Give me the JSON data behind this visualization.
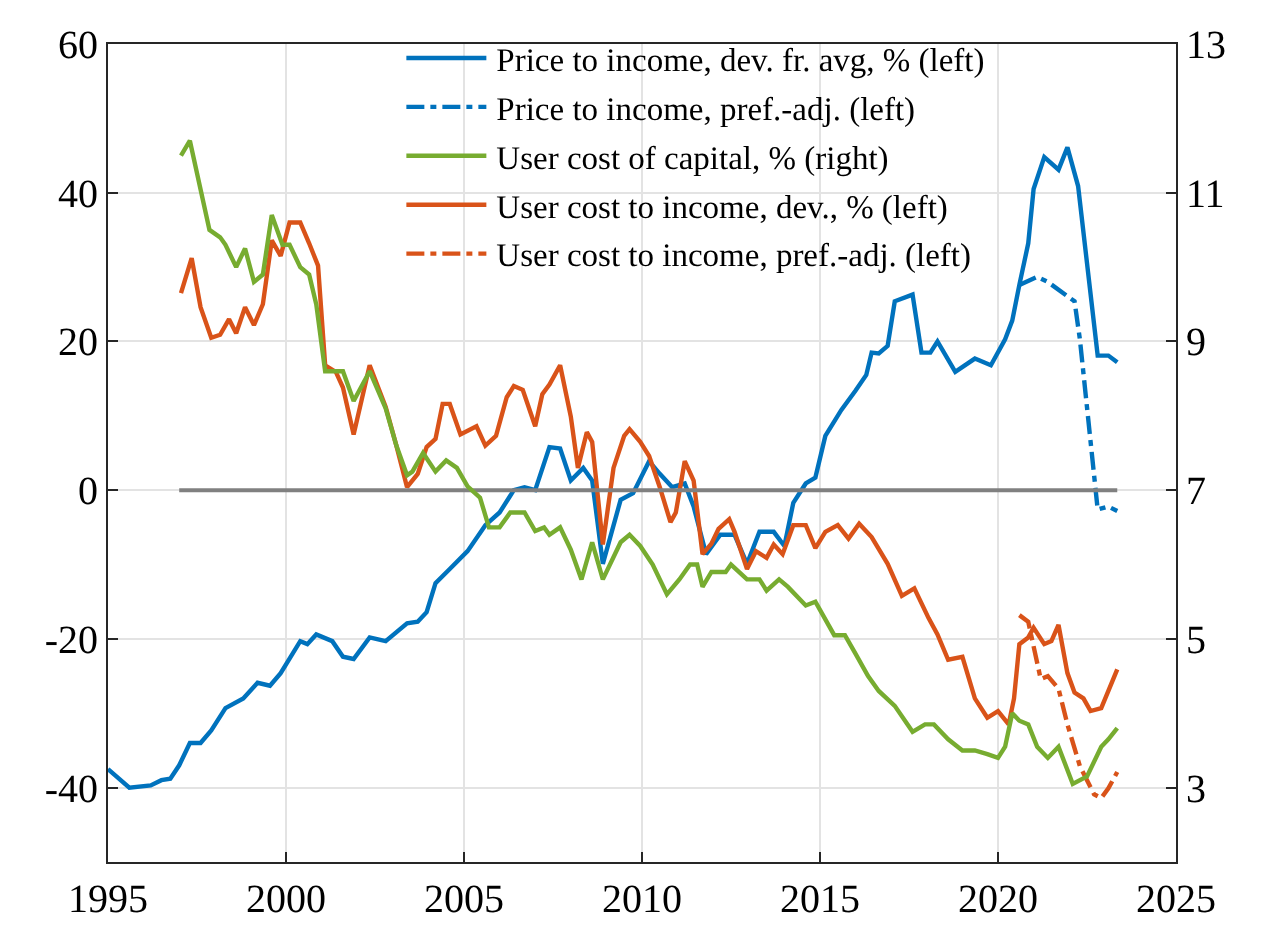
{
  "chart_data": {
    "type": "line",
    "xlim": [
      1995,
      2025
    ],
    "xticks": [
      1995,
      2000,
      2005,
      2010,
      2015,
      2020,
      2025
    ],
    "ylim": [
      -50,
      60
    ],
    "yticks": [
      -40,
      -20,
      0,
      20,
      40,
      60
    ],
    "y2lim": [
      2,
      13
    ],
    "y2ticks": [
      3,
      5,
      7,
      9,
      11,
      13
    ],
    "grid": true,
    "legend": "top right",
    "marker": "none",
    "series": [
      {
        "name": "Price to income, dev. fr. avg, % (left)",
        "color": "#0072bd",
        "line_style": "solid",
        "x": [
          1995.0,
          1995.6,
          1996.2,
          1996.5,
          1996.75,
          1997.0,
          1997.3,
          1997.6,
          1997.9,
          1998.3,
          1998.8,
          1999.2,
          1999.55,
          1999.85,
          2000.4,
          2000.6,
          2000.85,
          2001.3,
          2001.6,
          2001.9,
          2002.35,
          2002.8,
          2003.4,
          2003.7,
          2003.95,
          2004.2,
          2004.6,
          2005.1,
          2005.6,
          2006.0,
          2006.4,
          2006.7,
          2007.0,
          2007.4,
          2007.7,
          2008.0,
          2008.35,
          2008.6,
          2008.9,
          2009.4,
          2009.75,
          2010.2,
          2010.5,
          2010.85,
          2011.2,
          2011.45,
          2011.8,
          2012.2,
          2012.6,
          2012.95,
          2013.3,
          2013.7,
          2014.0,
          2014.25,
          2014.6,
          2014.87,
          2015.15,
          2015.6,
          2016.0,
          2016.3,
          2016.45,
          2016.65,
          2016.9,
          2017.1,
          2017.6,
          2017.85,
          2018.1,
          2018.3,
          2018.8,
          2019.35,
          2019.8,
          2020.2,
          2020.4,
          2020.6,
          2020.85,
          2021.0,
          2021.3,
          2021.7,
          2021.95,
          2022.25,
          2022.8,
          2023.1,
          2023.35
        ],
        "values": [
          -37.5,
          -40,
          -39.7,
          -39,
          -38.8,
          -37,
          -34,
          -34,
          -32.3,
          -29.3,
          -28,
          -25.9,
          -26.3,
          -24.6,
          -20.3,
          -20.7,
          -19.4,
          -20.3,
          -22.4,
          -22.7,
          -19.8,
          -20.3,
          -17.9,
          -17.7,
          -16.4,
          -12.5,
          -10.6,
          -8.2,
          -4.7,
          -3,
          0,
          0.4,
          0,
          5.8,
          5.6,
          1.3,
          3,
          1.3,
          -9.9,
          -1.3,
          -0.4,
          3.9,
          2.2,
          0.4,
          0.9,
          -2.2,
          -8.6,
          -6,
          -6,
          -9.9,
          -5.6,
          -5.6,
          -7.5,
          -1.7,
          0.9,
          1.7,
          7.3,
          10.8,
          13.4,
          15.5,
          18.5,
          18.4,
          19.4,
          25.4,
          26.3,
          18.5,
          18.5,
          20,
          15.9,
          17.7,
          16.8,
          20.3,
          22.8,
          27.6,
          33.2,
          40.5,
          44.8,
          43.1,
          46.1,
          40.9,
          18.1,
          18.1,
          17.2
        ]
      },
      {
        "name": "Price to income, pref.-adj. (left)",
        "color": "#0072bd",
        "line_style": "dashed",
        "x": [
          2020.6,
          2021.1,
          2021.4,
          2022.15,
          2022.3,
          2022.8,
          2023.1,
          2023.35
        ],
        "values": [
          27.6,
          28.7,
          28,
          25.4,
          20.3,
          -2.6,
          -2.2,
          -2.8
        ]
      },
      {
        "name": "User cost of capital, % (right)",
        "color": "#77ac30",
        "line_style": "solid",
        "axis": "y2",
        "x": [
          1997.05,
          1997.3,
          1997.85,
          1998.15,
          1998.3,
          1998.6,
          1998.85,
          1999.1,
          1999.35,
          1999.6,
          1999.9,
          2000.1,
          2000.4,
          2000.65,
          2000.85,
          2001.1,
          2001.4,
          2001.6,
          2001.9,
          2002.35,
          2002.8,
          2003.1,
          2003.4,
          2003.55,
          2003.85,
          2004.2,
          2004.5,
          2004.8,
          2005.1,
          2005.45,
          2005.7,
          2006.0,
          2006.3,
          2006.7,
          2007.0,
          2007.25,
          2007.4,
          2007.7,
          2008.0,
          2008.3,
          2008.6,
          2008.9,
          2009.4,
          2009.65,
          2009.95,
          2010.3,
          2010.7,
          2011.05,
          2011.35,
          2011.55,
          2011.7,
          2011.95,
          2012.35,
          2012.5,
          2012.95,
          2013.3,
          2013.5,
          2013.85,
          2014.1,
          2014.6,
          2014.87,
          2015.4,
          2015.7,
          2016.0,
          2016.35,
          2016.65,
          2017.1,
          2017.6,
          2017.95,
          2018.2,
          2018.6,
          2019.0,
          2019.35,
          2019.7,
          2020.0,
          2020.2,
          2020.4,
          2020.6,
          2020.85,
          2021.1,
          2021.4,
          2021.7,
          2022.1,
          2022.5,
          2022.9,
          2023.1,
          2023.35
        ],
        "values": [
          11.5,
          11.7,
          10.5,
          10.4,
          10.3,
          10.0,
          10.25,
          9.8,
          9.9,
          10.7,
          10.3,
          10.3,
          10.0,
          9.9,
          9.5,
          8.6,
          8.6,
          8.6,
          8.2,
          8.6,
          8.1,
          7.6,
          7.2,
          7.25,
          7.5,
          7.25,
          7.4,
          7.3,
          7.05,
          6.9,
          6.5,
          6.5,
          6.7,
          6.7,
          6.45,
          6.5,
          6.4,
          6.5,
          6.2,
          5.8,
          6.3,
          5.8,
          6.3,
          6.4,
          6.25,
          6.0,
          5.6,
          5.8,
          6.0,
          6.0,
          5.7,
          5.9,
          5.9,
          6.0,
          5.8,
          5.8,
          5.65,
          5.8,
          5.7,
          5.45,
          5.5,
          5.05,
          5.05,
          4.8,
          4.5,
          4.3,
          4.1,
          3.75,
          3.85,
          3.85,
          3.65,
          3.5,
          3.5,
          3.45,
          3.4,
          3.55,
          4.0,
          3.9,
          3.85,
          3.55,
          3.4,
          3.55,
          3.05,
          3.15,
          3.55,
          3.65,
          3.8
        ]
      },
      {
        "name": "User cost to income, dev., % (left)",
        "color": "#d95319",
        "line_style": "solid",
        "x": [
          1997.05,
          1997.35,
          1997.6,
          1997.9,
          1998.15,
          1998.4,
          1998.6,
          1998.85,
          1999.1,
          1999.35,
          1999.6,
          1999.85,
          2000.1,
          2000.4,
          2000.65,
          2000.9,
          2001.1,
          2001.4,
          2001.6,
          2001.9,
          2002.35,
          2002.8,
          2003.1,
          2003.4,
          2003.7,
          2003.95,
          2004.2,
          2004.4,
          2004.6,
          2004.9,
          2005.35,
          2005.6,
          2005.9,
          2006.2,
          2006.4,
          2006.65,
          2007.0,
          2007.2,
          2007.4,
          2007.7,
          2008.0,
          2008.2,
          2008.45,
          2008.6,
          2008.9,
          2009.2,
          2009.5,
          2009.65,
          2009.95,
          2010.2,
          2010.5,
          2010.8,
          2010.95,
          2011.2,
          2011.45,
          2011.7,
          2011.95,
          2012.15,
          2012.45,
          2012.6,
          2012.95,
          2013.2,
          2013.5,
          2013.7,
          2013.95,
          2014.25,
          2014.6,
          2014.87,
          2015.15,
          2015.5,
          2015.8,
          2016.1,
          2016.45,
          2016.9,
          2017.3,
          2017.65,
          2018.05,
          2018.3,
          2018.6,
          2019.0,
          2019.35,
          2019.7,
          2020.0,
          2020.3,
          2020.45,
          2020.6,
          2020.85,
          2021.0,
          2021.3,
          2021.5,
          2021.7,
          2021.95,
          2022.15,
          2022.4,
          2022.6,
          2022.9,
          2023.35
        ],
        "values": [
          26.5,
          31.2,
          24.6,
          20.5,
          20.9,
          23,
          21.1,
          24.6,
          22.2,
          25,
          33.6,
          31.5,
          36,
          36,
          33.2,
          30.2,
          16.8,
          15.9,
          13.8,
          7.5,
          16.8,
          11.2,
          6.0,
          0.4,
          2.2,
          5.8,
          6.9,
          11.6,
          11.6,
          7.5,
          8.6,
          6,
          7.3,
          12.5,
          14,
          13.5,
          8.6,
          12.9,
          14.2,
          16.8,
          9.9,
          3,
          7.8,
          6.5,
          -7.3,
          3,
          7.3,
          8.2,
          6.5,
          4.6,
          0.4,
          -4.3,
          -3,
          3.9,
          1.3,
          -8.6,
          -7.2,
          -5.2,
          -3.9,
          -5.6,
          -10.6,
          -8.2,
          -9.1,
          -7.3,
          -8.6,
          -4.7,
          -4.7,
          -7.8,
          -5.6,
          -4.7,
          -6.5,
          -4.5,
          -6.3,
          -9.9,
          -14.2,
          -13.2,
          -17.2,
          -19.4,
          -22.8,
          -22.4,
          -28,
          -30.6,
          -29.7,
          -31.5,
          -28,
          -20.7,
          -19.8,
          -18.5,
          -20.7,
          -20.3,
          -18.1,
          -24.6,
          -27.2,
          -28,
          -29.7,
          -29.3,
          -24.1
        ]
      },
      {
        "name": "User cost to income, pref.-adj. (left)",
        "color": "#d95319",
        "line_style": "dashed",
        "x": [
          2020.6,
          2020.85,
          2021.2,
          2021.4,
          2021.7,
          2021.95,
          2022.3,
          2022.7,
          2022.9,
          2023.1,
          2023.35
        ],
        "values": [
          -16.8,
          -17.7,
          -25.4,
          -25,
          -26.7,
          -31.5,
          -37.1,
          -40.9,
          -41.4,
          -40.1,
          -37.9
        ]
      },
      {
        "color": "#808080",
        "line_style": "solid",
        "x": [
          1997,
          2023.35
        ],
        "values": [
          0,
          0
        ]
      }
    ]
  }
}
